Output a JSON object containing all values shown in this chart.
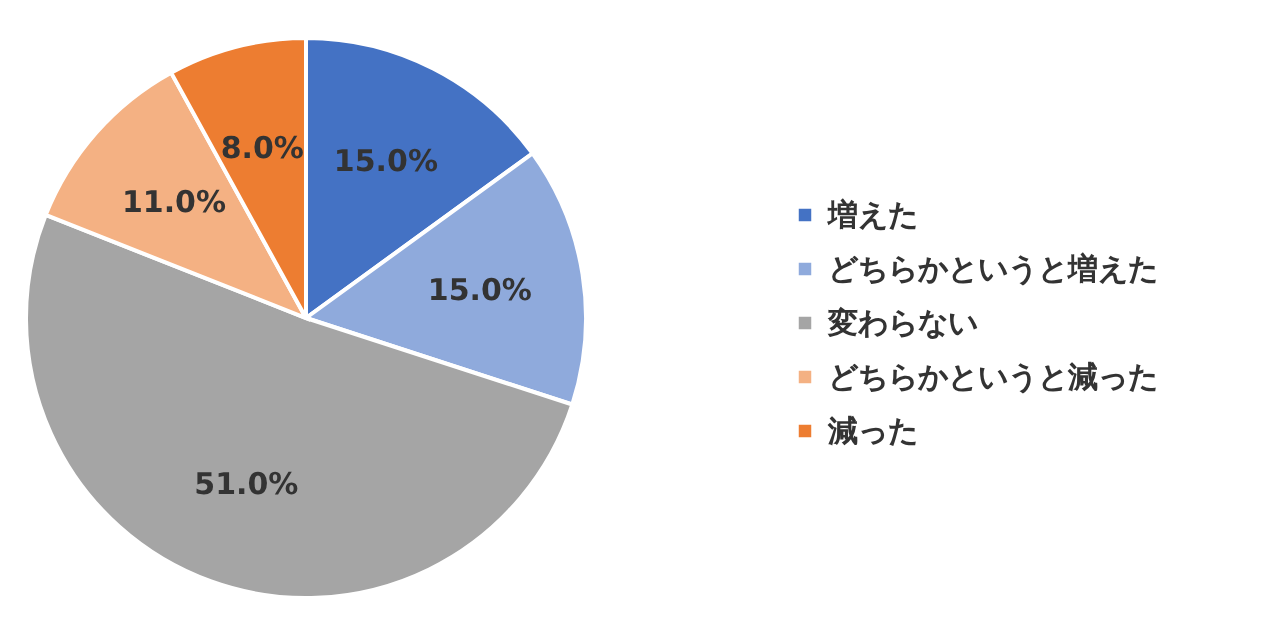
{
  "chart_data": {
    "type": "pie",
    "categories": [
      "増えた",
      "どちらかというと増えた",
      "変わらない",
      "どちらかというと減った",
      "減った"
    ],
    "values": [
      15,
      15,
      51,
      11,
      8
    ],
    "colors": [
      "#4472c4",
      "#8faadc",
      "#a5a5a5",
      "#f4b183",
      "#ed7d31"
    ],
    "value_labels": [
      "15.0%",
      "15.0%",
      "51.0%",
      "11.0%",
      "8.0%"
    ],
    "legend": "right"
  }
}
